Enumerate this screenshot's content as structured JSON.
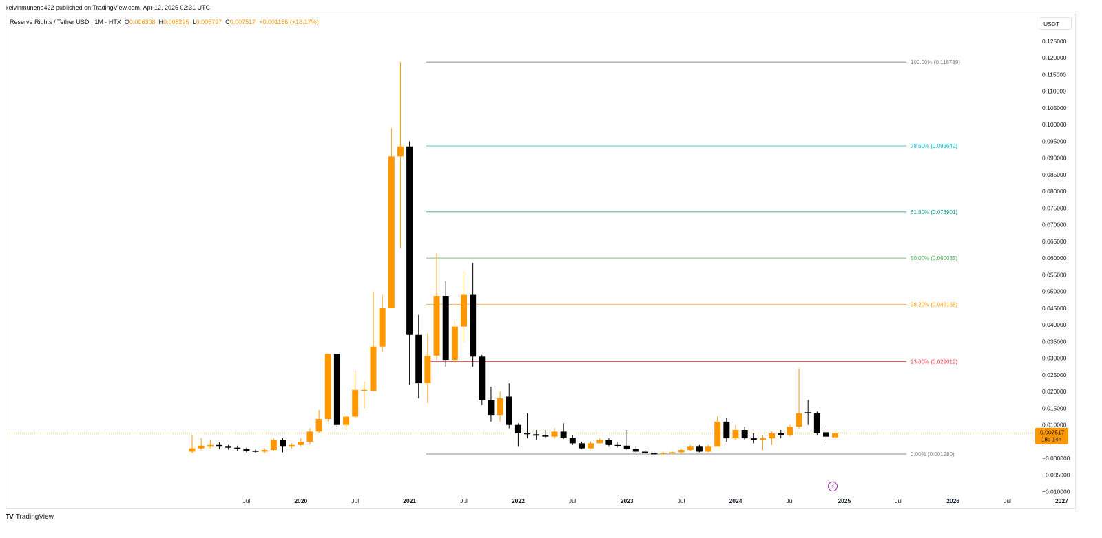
{
  "header": {
    "publisher": "kelvinmunene422 published on TradingView.com, Apr 12, 2025 02:31 UTC"
  },
  "legend": {
    "symbol": "Reserve Rights / Tether USD · 1M · HTX",
    "o_label": "O",
    "o_value": "0.006308",
    "h_label": "H",
    "h_value": "0.008295",
    "l_label": "L",
    "l_value": "0.005797",
    "c_label": "C",
    "c_value": "0.007517",
    "change": "+0.001156 (+18.17%)"
  },
  "currency_button": "USDT",
  "footer": {
    "brand": "TradingView",
    "logo": "TV"
  },
  "icons": {
    "lightning": "lightning-icon",
    "logo": "tradingview-logo-icon"
  },
  "colors": {
    "up": "#ff9800",
    "down": "#000000",
    "grid_text": "#131722"
  },
  "chart_data": {
    "type": "candlestick",
    "title": "Reserve Rights / Tether USD · 1M · HTX",
    "ylim": [
      -0.011,
      0.127
    ],
    "y_ticks": [
      "0.125000",
      "0.120000",
      "0.115000",
      "0.110000",
      "0.105000",
      "0.100000",
      "0.095000",
      "0.090000",
      "0.085000",
      "0.080000",
      "0.075000",
      "0.070000",
      "0.065000",
      "0.060000",
      "0.055000",
      "0.050000",
      "0.045000",
      "0.040000",
      "0.035000",
      "0.030000",
      "0.025000",
      "0.020000",
      "0.015000",
      "0.010000",
      "0.005000",
      "−0.000000",
      "−0.005000",
      "−0.010000"
    ],
    "x_ticks": [
      "Jul",
      "2020",
      "Jul",
      "2021",
      "Jul",
      "2022",
      "Jul",
      "2023",
      "Jul",
      "2024",
      "Jul",
      "2025",
      "Jul",
      "2026",
      "Jul",
      "2027"
    ],
    "x_tick_months": [
      6,
      12,
      18,
      24,
      30,
      36,
      42,
      48,
      54,
      60,
      66,
      72,
      78,
      84,
      90,
      96
    ],
    "candles": [
      [
        0,
        0.002,
        0.003,
        0.007,
        0.0015
      ],
      [
        1,
        0.003,
        0.0038,
        0.006,
        0.0025
      ],
      [
        2,
        0.0035,
        0.004,
        0.0055,
        0.003
      ],
      [
        3,
        0.004,
        0.0035,
        0.0048,
        0.0028
      ],
      [
        4,
        0.0035,
        0.0032,
        0.004,
        0.0026
      ],
      [
        5,
        0.0032,
        0.0028,
        0.0038,
        0.0022
      ],
      [
        6,
        0.0028,
        0.0022,
        0.0032,
        0.0018
      ],
      [
        7,
        0.0022,
        0.002,
        0.0026,
        0.0016
      ],
      [
        8,
        0.002,
        0.0025,
        0.003,
        0.0016
      ],
      [
        9,
        0.0025,
        0.0055,
        0.006,
        0.0022
      ],
      [
        10,
        0.0055,
        0.0035,
        0.006,
        0.0018
      ],
      [
        11,
        0.0035,
        0.004,
        0.0045,
        0.003
      ],
      [
        12,
        0.004,
        0.005,
        0.006,
        0.0035
      ],
      [
        13,
        0.005,
        0.008,
        0.009,
        0.004
      ],
      [
        14,
        0.008,
        0.0118,
        0.0145,
        0.0075
      ],
      [
        15,
        0.0118,
        0.0313,
        0.0315,
        0.011
      ],
      [
        16,
        0.0313,
        0.01,
        0.0313,
        0.0095
      ],
      [
        17,
        0.01,
        0.0125,
        0.013,
        0.0085
      ],
      [
        18,
        0.0125,
        0.0205,
        0.0262,
        0.012
      ],
      [
        19,
        0.0205,
        0.0205,
        0.023,
        0.015
      ],
      [
        20,
        0.0202,
        0.0335,
        0.05,
        0.02
      ],
      [
        21,
        0.0335,
        0.045,
        0.049,
        0.032
      ],
      [
        22,
        0.045,
        0.0905,
        0.099,
        0.045
      ],
      [
        23,
        0.0905,
        0.0935,
        0.1188,
        0.063
      ],
      [
        24,
        0.0935,
        0.037,
        0.095,
        0.022
      ],
      [
        25,
        0.037,
        0.0225,
        0.043,
        0.018
      ],
      [
        26,
        0.0225,
        0.0308,
        0.0375,
        0.0165
      ],
      [
        27,
        0.0308,
        0.0487,
        0.0615,
        0.0295
      ],
      [
        28,
        0.0487,
        0.0295,
        0.053,
        0.0275
      ],
      [
        29,
        0.0295,
        0.0395,
        0.041,
        0.0285
      ],
      [
        30,
        0.0395,
        0.049,
        0.056,
        0.035
      ],
      [
        31,
        0.049,
        0.0305,
        0.0585,
        0.0275
      ],
      [
        32,
        0.0305,
        0.0175,
        0.031,
        0.016
      ],
      [
        33,
        0.0175,
        0.013,
        0.0215,
        0.011
      ],
      [
        34,
        0.013,
        0.018,
        0.02,
        0.011
      ],
      [
        35,
        0.0185,
        0.01,
        0.0225,
        0.009
      ],
      [
        36,
        0.01,
        0.0075,
        0.0105,
        0.0035
      ],
      [
        37,
        0.0075,
        0.0072,
        0.0135,
        0.006
      ],
      [
        38,
        0.0072,
        0.0068,
        0.0085,
        0.0055
      ],
      [
        39,
        0.007,
        0.0065,
        0.0085,
        0.006
      ],
      [
        40,
        0.0065,
        0.008,
        0.009,
        0.006
      ],
      [
        41,
        0.008,
        0.0062,
        0.0105,
        0.0058
      ],
      [
        42,
        0.0062,
        0.0045,
        0.007,
        0.004
      ],
      [
        43,
        0.0045,
        0.003,
        0.005,
        0.0028
      ],
      [
        44,
        0.003,
        0.0045,
        0.005,
        0.0028
      ],
      [
        45,
        0.0045,
        0.0055,
        0.006,
        0.0045
      ],
      [
        46,
        0.0055,
        0.004,
        0.006,
        0.0035
      ],
      [
        47,
        0.004,
        0.0038,
        0.0048,
        0.0032
      ],
      [
        48,
        0.0038,
        0.0028,
        0.0085,
        0.0025
      ],
      [
        49,
        0.0028,
        0.002,
        0.0035,
        0.0015
      ],
      [
        50,
        0.002,
        0.0015,
        0.0025,
        0.0012
      ],
      [
        51,
        0.0015,
        0.0012,
        0.0018,
        0.001
      ],
      [
        52,
        0.0012,
        0.0015,
        0.002,
        0.001
      ],
      [
        53,
        0.0015,
        0.0018,
        0.0022,
        0.0012
      ],
      [
        54,
        0.0018,
        0.0025,
        0.003,
        0.0015
      ],
      [
        55,
        0.0025,
        0.0035,
        0.004,
        0.0022
      ],
      [
        56,
        0.0035,
        0.002,
        0.004,
        0.0018
      ],
      [
        57,
        0.002,
        0.0035,
        0.004,
        0.0018
      ],
      [
        58,
        0.0035,
        0.011,
        0.0125,
        0.0035
      ],
      [
        59,
        0.011,
        0.006,
        0.012,
        0.005
      ],
      [
        60,
        0.006,
        0.0085,
        0.01,
        0.0055
      ],
      [
        61,
        0.0085,
        0.006,
        0.0095,
        0.0055
      ],
      [
        62,
        0.006,
        0.0055,
        0.0075,
        0.0045
      ],
      [
        63,
        0.0055,
        0.006,
        0.007,
        0.0025
      ],
      [
        64,
        0.006,
        0.0075,
        0.008,
        0.004
      ],
      [
        65,
        0.0075,
        0.007,
        0.0085,
        0.006
      ],
      [
        66,
        0.007,
        0.0095,
        0.01,
        0.0065
      ],
      [
        67,
        0.0095,
        0.0135,
        0.027,
        0.009
      ],
      [
        68,
        0.0138,
        0.0135,
        0.0175,
        0.01
      ],
      [
        69,
        0.0135,
        0.0075,
        0.014,
        0.007
      ],
      [
        70,
        0.0078,
        0.0065,
        0.009,
        0.0045
      ],
      [
        71,
        0.0063,
        0.0075,
        0.0083,
        0.0058
      ]
    ],
    "fib_levels": [
      {
        "label": "100.00% (0.118789)",
        "value": 0.118789,
        "color": "#787b86"
      },
      {
        "label": "78.60% (0.093642)",
        "value": 0.093642,
        "color": "#00bcd4"
      },
      {
        "label": "61.80% (0.073901)",
        "value": 0.073901,
        "color": "#089981"
      },
      {
        "label": "50.00% (0.060035)",
        "value": 0.060035,
        "color": "#4caf50"
      },
      {
        "label": "38.20% (0.046168)",
        "value": 0.046168,
        "color": "#ff9800"
      },
      {
        "label": "23.60% (0.029012)",
        "value": 0.029012,
        "color": "#f23645"
      },
      {
        "label": "0.00% (0.001280)",
        "value": 0.00128,
        "color": "#787b86"
      }
    ],
    "last_price": {
      "value": "0.007517",
      "price": 0.007517,
      "countdown": "18d 14h"
    }
  }
}
